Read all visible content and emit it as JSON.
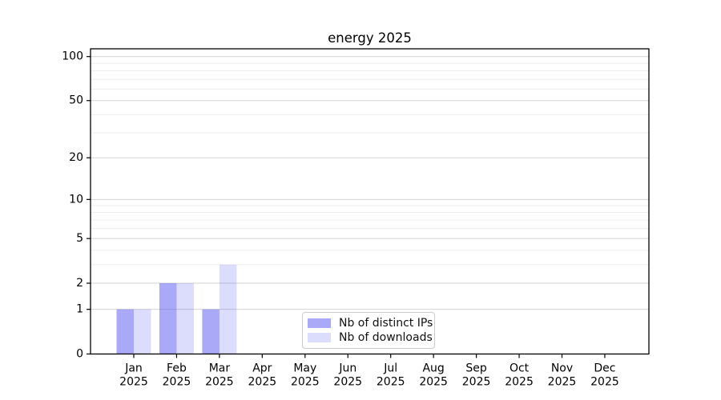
{
  "chart_data": {
    "type": "bar",
    "title": "energy 2025",
    "categories": [
      {
        "month": "Jan",
        "year": "2025"
      },
      {
        "month": "Feb",
        "year": "2025"
      },
      {
        "month": "Mar",
        "year": "2025"
      },
      {
        "month": "Apr",
        "year": "2025"
      },
      {
        "month": "May",
        "year": "2025"
      },
      {
        "month": "Jun",
        "year": "2025"
      },
      {
        "month": "Jul",
        "year": "2025"
      },
      {
        "month": "Aug",
        "year": "2025"
      },
      {
        "month": "Sep",
        "year": "2025"
      },
      {
        "month": "Oct",
        "year": "2025"
      },
      {
        "month": "Nov",
        "year": "2025"
      },
      {
        "month": "Dec",
        "year": "2025"
      }
    ],
    "series": [
      {
        "key": "distinct-ips",
        "name": "Nb of distinct IPs",
        "color": "rgba(90,90,240,0.52)",
        "values": [
          1,
          2,
          1,
          0,
          0,
          0,
          0,
          0,
          0,
          0,
          0,
          0
        ]
      },
      {
        "key": "downloads",
        "name": "Nb of downloads",
        "color": "rgba(90,90,240,0.21)",
        "values": [
          1,
          2,
          3,
          0,
          0,
          0,
          0,
          0,
          0,
          0,
          0,
          0
        ]
      }
    ],
    "y_ticks": [
      0,
      1,
      2,
      5,
      10,
      20,
      50,
      100
    ],
    "y_minor_gridlines": [
      3,
      4,
      6,
      7,
      8,
      9,
      30,
      40,
      60,
      70,
      80,
      90
    ],
    "y_scale": "log1p",
    "ylim": [
      0,
      112
    ],
    "xlabel": "",
    "ylabel": "",
    "grid": true,
    "legend_position": "lower center",
    "colors": {
      "major_grid": "#d2d2d2",
      "minor_grid": "#ececec",
      "axis": "#000000",
      "text": "#000000"
    }
  }
}
